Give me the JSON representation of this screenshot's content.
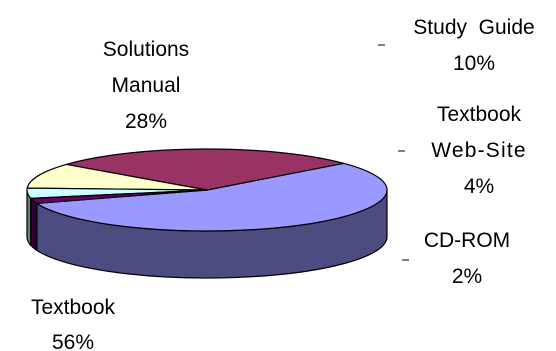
{
  "chart_data": {
    "type": "pie",
    "style": "3d-pie",
    "title": "",
    "slices": [
      {
        "name": "Textbook",
        "value": 56,
        "label": "56%",
        "color": "#9999ff",
        "side_color": "#4c4c80"
      },
      {
        "name": "Solutions Manual",
        "value": 28,
        "label": "28%",
        "color": "#993366",
        "side_color": "#4c1933"
      },
      {
        "name": "Study Guide",
        "value": 10,
        "label": "10%",
        "color": "#ffffcc",
        "side_color": "#808066"
      },
      {
        "name": "Textbook Web-Site",
        "value": 4,
        "label": "4%",
        "color": "#ccffff",
        "side_color": "#668080"
      },
      {
        "name": "CD-ROM",
        "value": 2,
        "label": "2%",
        "color": "#660066",
        "side_color": "#330033"
      }
    ],
    "label_text": {
      "textbook": [
        "Textbook",
        "56%"
      ],
      "solutions": [
        "Solutions",
        "Manual",
        "28%"
      ],
      "study": [
        "Study  Guide",
        "10%"
      ],
      "website": [
        "Textbook",
        "Web-Site",
        "4%"
      ],
      "cdrom": [
        "CD-ROM",
        "2%"
      ]
    },
    "legend": "none"
  }
}
